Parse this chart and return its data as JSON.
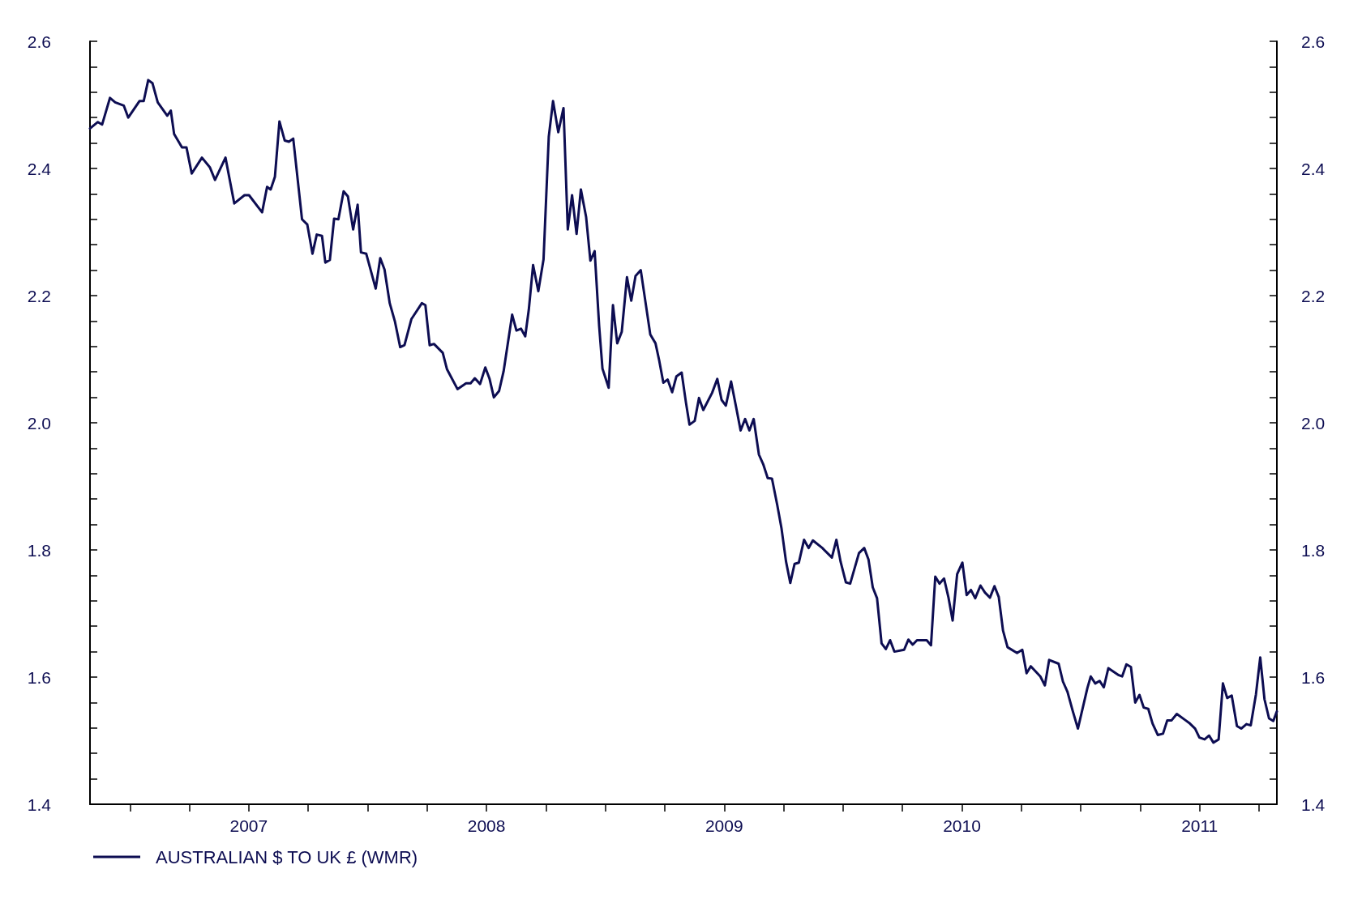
{
  "chart_data": {
    "type": "line",
    "x": [
      2006.832,
      2006.865,
      2006.883,
      2006.916,
      2006.938,
      2006.974,
      2006.993,
      2007.04,
      2007.058,
      2007.077,
      2007.095,
      2007.117,
      2007.157,
      2007.172,
      2007.186,
      2007.219,
      2007.238,
      2007.26,
      2007.303,
      2007.336,
      2007.358,
      2007.402,
      2007.439,
      2007.482,
      2007.501,
      2007.556,
      2007.577,
      2007.592,
      2007.61,
      2007.629,
      2007.651,
      2007.669,
      2007.687,
      2007.724,
      2007.746,
      2007.768,
      2007.786,
      2007.808,
      2007.822,
      2007.841,
      2007.859,
      2007.877,
      2007.899,
      2007.917,
      2007.939,
      2007.958,
      2007.972,
      2007.994,
      2008.034,
      2008.053,
      2008.071,
      2008.093,
      2008.115,
      2008.137,
      2008.155,
      2008.184,
      2008.228,
      2008.243,
      2008.261,
      2008.279,
      2008.316,
      2008.334,
      2008.378,
      2008.414,
      2008.433,
      2008.451,
      2008.473,
      2008.495,
      2008.513,
      2008.531,
      2008.553,
      2008.572,
      2008.608,
      2008.626,
      2008.645,
      2008.663,
      2008.678,
      2008.696,
      2008.718,
      2008.74,
      2008.762,
      2008.78,
      2008.802,
      2008.824,
      2008.842,
      2008.86,
      2008.879,
      2008.897,
      2008.919,
      2008.937,
      2008.955,
      2008.974,
      2008.988,
      2009.014,
      2009.032,
      2009.05,
      2009.069,
      2009.091,
      2009.109,
      2009.127,
      2009.149,
      2009.189,
      2009.211,
      2009.226,
      2009.244,
      2009.262,
      2009.281,
      2009.299,
      2009.321,
      2009.339,
      2009.354,
      2009.376,
      2009.394,
      2009.412,
      2009.449,
      2009.471,
      2009.489,
      2009.507,
      2009.529,
      2009.551,
      2009.569,
      2009.588,
      2009.606,
      2009.624,
      2009.646,
      2009.664,
      2009.683,
      2009.701,
      2009.723,
      2009.741,
      2009.76,
      2009.778,
      2009.796,
      2009.814,
      2009.836,
      2009.855,
      2009.873,
      2009.913,
      2009.953,
      2009.972,
      2009.99,
      2010.012,
      2010.03,
      2010.067,
      2010.089,
      2010.107,
      2010.125,
      2010.143,
      2010.162,
      2010.18,
      2010.198,
      2010.216,
      2010.257,
      2010.275,
      2010.293,
      2010.311,
      2010.352,
      2010.37,
      2010.388,
      2010.406,
      2010.425,
      2010.443,
      2010.461,
      2010.48,
      2010.502,
      2010.52,
      2010.538,
      2010.556,
      2010.578,
      2010.597,
      2010.618,
      2010.637,
      2010.655,
      2010.673,
      2010.692,
      2010.732,
      2010.754,
      2010.772,
      2010.79,
      2010.83,
      2010.849,
      2010.867,
      2010.907,
      2010.925,
      2010.944,
      2010.966,
      2010.988,
      2011.028,
      2011.042,
      2011.061,
      2011.079,
      2011.097,
      2011.116,
      2011.16,
      2011.174,
      2011.192,
      2011.211,
      2011.229,
      2011.247,
      2011.265,
      2011.284,
      2011.302,
      2011.324,
      2011.346,
      2011.364,
      2011.382,
      2011.404,
      2011.441,
      2011.459,
      2011.481,
      2011.499,
      2011.521,
      2011.54,
      2011.558,
      2011.58,
      2011.598,
      2011.616,
      2011.635,
      2011.657,
      2011.675,
      2011.697,
      2011.715,
      2011.737,
      2011.755,
      2011.773,
      2011.792,
      2011.81,
      2011.825
    ],
    "series": [
      {
        "name": "AUSTRALIAN $ TO UK £ (WMR)",
        "color": "#0d0d52",
        "values": [
          2.463,
          2.473,
          2.469,
          2.511,
          2.504,
          2.499,
          2.48,
          2.506,
          2.506,
          2.539,
          2.534,
          2.504,
          2.483,
          2.491,
          2.454,
          2.433,
          2.433,
          2.392,
          2.417,
          2.402,
          2.382,
          2.417,
          2.345,
          2.358,
          2.358,
          2.331,
          2.371,
          2.367,
          2.387,
          2.474,
          2.444,
          2.442,
          2.447,
          2.32,
          2.312,
          2.266,
          2.296,
          2.294,
          2.252,
          2.256,
          2.321,
          2.32,
          2.364,
          2.356,
          2.304,
          2.343,
          2.268,
          2.266,
          2.211,
          2.259,
          2.241,
          2.188,
          2.159,
          2.119,
          2.122,
          2.163,
          2.188,
          2.185,
          2.122,
          2.124,
          2.11,
          2.084,
          2.053,
          2.062,
          2.062,
          2.07,
          2.061,
          2.087,
          2.069,
          2.04,
          2.05,
          2.081,
          2.17,
          2.145,
          2.148,
          2.136,
          2.178,
          2.248,
          2.207,
          2.257,
          2.45,
          2.506,
          2.457,
          2.495,
          2.304,
          2.358,
          2.297,
          2.367,
          2.324,
          2.255,
          2.27,
          2.152,
          2.085,
          2.055,
          2.185,
          2.125,
          2.143,
          2.229,
          2.192,
          2.231,
          2.24,
          2.139,
          2.125,
          2.099,
          2.063,
          2.068,
          2.048,
          2.073,
          2.079,
          2.032,
          1.997,
          2.003,
          2.039,
          2.02,
          2.047,
          2.069,
          2.036,
          2.027,
          2.065,
          2.023,
          1.988,
          2.006,
          1.988,
          2.006,
          1.95,
          1.935,
          1.913,
          1.912,
          1.871,
          1.834,
          1.782,
          1.748,
          1.778,
          1.78,
          1.816,
          1.803,
          1.815,
          1.803,
          1.788,
          1.816,
          1.781,
          1.749,
          1.747,
          1.795,
          1.803,
          1.785,
          1.741,
          1.724,
          1.653,
          1.644,
          1.658,
          1.64,
          1.643,
          1.659,
          1.651,
          1.658,
          1.658,
          1.65,
          1.758,
          1.747,
          1.755,
          1.726,
          1.689,
          1.762,
          1.78,
          1.729,
          1.737,
          1.724,
          1.744,
          1.733,
          1.725,
          1.743,
          1.726,
          1.673,
          1.647,
          1.638,
          1.643,
          1.606,
          1.617,
          1.601,
          1.587,
          1.627,
          1.621,
          1.593,
          1.577,
          1.547,
          1.519,
          1.583,
          1.601,
          1.59,
          1.594,
          1.584,
          1.614,
          1.603,
          1.601,
          1.62,
          1.616,
          1.56,
          1.572,
          1.552,
          1.55,
          1.527,
          1.509,
          1.511,
          1.532,
          1.532,
          1.542,
          1.532,
          1.527,
          1.519,
          1.505,
          1.502,
          1.508,
          1.497,
          1.502,
          1.59,
          1.567,
          1.571,
          1.523,
          1.519,
          1.526,
          1.524,
          1.573,
          1.631,
          1.565,
          1.535,
          1.531,
          1.546
        ]
      }
    ],
    "xlim": [
      2006.832,
      2011.825
    ],
    "xticks": [
      {
        "value": 2007,
        "label": null
      },
      {
        "value": 2007.25,
        "label": null
      },
      {
        "value": 2007.5,
        "label": "2007"
      },
      {
        "value": 2007.75,
        "label": null
      },
      {
        "value": 2008,
        "label": null
      },
      {
        "value": 2008.25,
        "label": null
      },
      {
        "value": 2008.5,
        "label": "2008"
      },
      {
        "value": 2008.75,
        "label": null
      },
      {
        "value": 2009,
        "label": null
      },
      {
        "value": 2009.25,
        "label": null
      },
      {
        "value": 2009.5,
        "label": "2009"
      },
      {
        "value": 2009.75,
        "label": null
      },
      {
        "value": 2010,
        "label": null
      },
      {
        "value": 2010.25,
        "label": null
      },
      {
        "value": 2010.5,
        "label": "2010"
      },
      {
        "value": 2010.75,
        "label": null
      },
      {
        "value": 2011,
        "label": null
      },
      {
        "value": 2011.25,
        "label": null
      },
      {
        "value": 2011.5,
        "label": "2011"
      },
      {
        "value": 2011.75,
        "label": null
      }
    ],
    "ylim": [
      1.4,
      2.6
    ],
    "yticks": [
      {
        "value": 1.4,
        "label": "1.4"
      },
      {
        "value": 1.44,
        "label": null
      },
      {
        "value": 1.48,
        "label": null
      },
      {
        "value": 1.52,
        "label": null
      },
      {
        "value": 1.56,
        "label": null
      },
      {
        "value": 1.6,
        "label": "1.6"
      },
      {
        "value": 1.64,
        "label": null
      },
      {
        "value": 1.68,
        "label": null
      },
      {
        "value": 1.72,
        "label": null
      },
      {
        "value": 1.76,
        "label": null
      },
      {
        "value": 1.8,
        "label": "1.8"
      },
      {
        "value": 1.84,
        "label": null
      },
      {
        "value": 1.88,
        "label": null
      },
      {
        "value": 1.92,
        "label": null
      },
      {
        "value": 1.96,
        "label": null
      },
      {
        "value": 2.0,
        "label": "2.0"
      },
      {
        "value": 2.04,
        "label": null
      },
      {
        "value": 2.08,
        "label": null
      },
      {
        "value": 2.12,
        "label": null
      },
      {
        "value": 2.16,
        "label": null
      },
      {
        "value": 2.2,
        "label": "2.2"
      },
      {
        "value": 2.24,
        "label": null
      },
      {
        "value": 2.28,
        "label": null
      },
      {
        "value": 2.32,
        "label": null
      },
      {
        "value": 2.36,
        "label": null
      },
      {
        "value": 2.4,
        "label": "2.4"
      },
      {
        "value": 2.44,
        "label": null
      },
      {
        "value": 2.48,
        "label": null
      },
      {
        "value": 2.52,
        "label": null
      },
      {
        "value": 2.56,
        "label": null
      },
      {
        "value": 2.6,
        "label": "2.6"
      }
    ],
    "y2lim": [
      1.4,
      2.6
    ],
    "y2ticks": [
      {
        "value": 1.4,
        "label": "1.4"
      },
      {
        "value": 1.44,
        "label": null
      },
      {
        "value": 1.48,
        "label": null
      },
      {
        "value": 1.52,
        "label": null
      },
      {
        "value": 1.56,
        "label": null
      },
      {
        "value": 1.6,
        "label": "1.6"
      },
      {
        "value": 1.64,
        "label": null
      },
      {
        "value": 1.68,
        "label": null
      },
      {
        "value": 1.72,
        "label": null
      },
      {
        "value": 1.76,
        "label": null
      },
      {
        "value": 1.8,
        "label": "1.8"
      },
      {
        "value": 1.84,
        "label": null
      },
      {
        "value": 1.88,
        "label": null
      },
      {
        "value": 1.92,
        "label": null
      },
      {
        "value": 1.96,
        "label": null
      },
      {
        "value": 2.0,
        "label": "2.0"
      },
      {
        "value": 2.04,
        "label": null
      },
      {
        "value": 2.08,
        "label": null
      },
      {
        "value": 2.12,
        "label": null
      },
      {
        "value": 2.16,
        "label": null
      },
      {
        "value": 2.2,
        "label": "2.2"
      },
      {
        "value": 2.24,
        "label": null
      },
      {
        "value": 2.28,
        "label": null
      },
      {
        "value": 2.32,
        "label": null
      },
      {
        "value": 2.36,
        "label": null
      },
      {
        "value": 2.4,
        "label": "2.4"
      },
      {
        "value": 2.44,
        "label": null
      },
      {
        "value": 2.48,
        "label": null
      },
      {
        "value": 2.52,
        "label": null
      },
      {
        "value": 2.56,
        "label": null
      },
      {
        "value": 2.6,
        "label": "2.6"
      }
    ],
    "grid": false,
    "legend": "bottom left",
    "marker": "none",
    "line_style": "solid"
  }
}
